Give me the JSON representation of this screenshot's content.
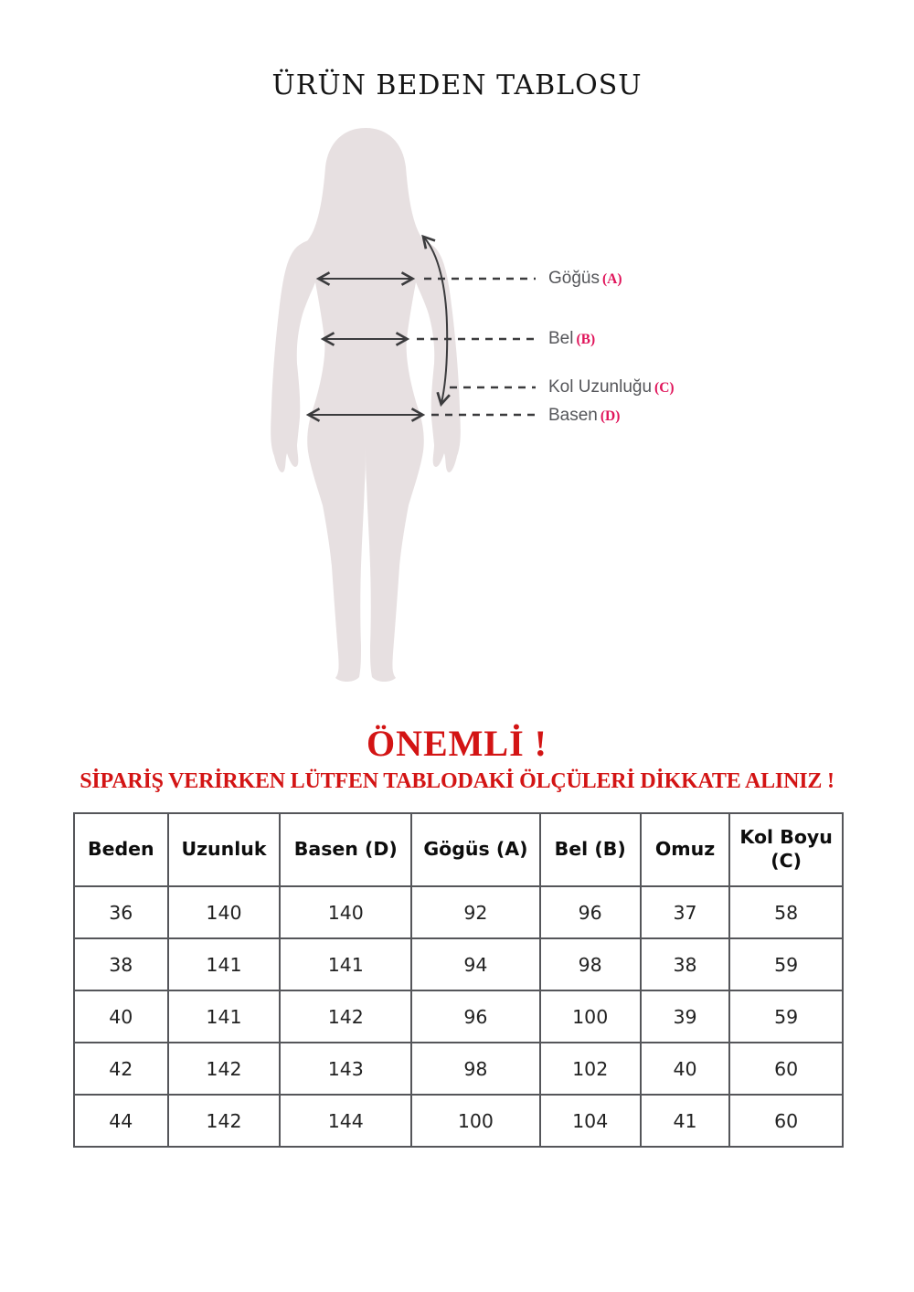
{
  "page": {
    "title": "ÜRÜN BEDEN TABLOSU"
  },
  "diagram": {
    "labels": [
      {
        "name": "Göğüs",
        "code": "(A)"
      },
      {
        "name": "Bel",
        "code": "(B)"
      },
      {
        "name": "Kol Uzunluğu",
        "code": "(C)"
      },
      {
        "name": "Basen",
        "code": "(D)"
      }
    ],
    "silhouette_color": "#e7e0e1",
    "arrow_color": "#3b3b3d",
    "label_color": "#55565a",
    "code_color": "#e0145a"
  },
  "notice": {
    "heading": "ÖNEMLİ !",
    "warning": "SİPARİŞ VERİRKEN LÜTFEN TABLODAKİ ÖLÇÜLERİ DİKKATE ALINIZ !",
    "color": "#d31414"
  },
  "size_table": {
    "headers": [
      "Beden",
      "Uzunluk",
      "Basen (D)",
      "Gögüs (A)",
      "Bel (B)",
      "Omuz",
      "Kol Boyu (C)"
    ],
    "rows": [
      [
        "36",
        "140",
        "140",
        "92",
        "96",
        "37",
        "58"
      ],
      [
        "38",
        "141",
        "141",
        "94",
        "98",
        "38",
        "59"
      ],
      [
        "40",
        "141",
        "142",
        "96",
        "100",
        "39",
        "59"
      ],
      [
        "42",
        "142",
        "143",
        "98",
        "102",
        "40",
        "60"
      ],
      [
        "44",
        "142",
        "144",
        "100",
        "104",
        "41",
        "60"
      ]
    ]
  }
}
